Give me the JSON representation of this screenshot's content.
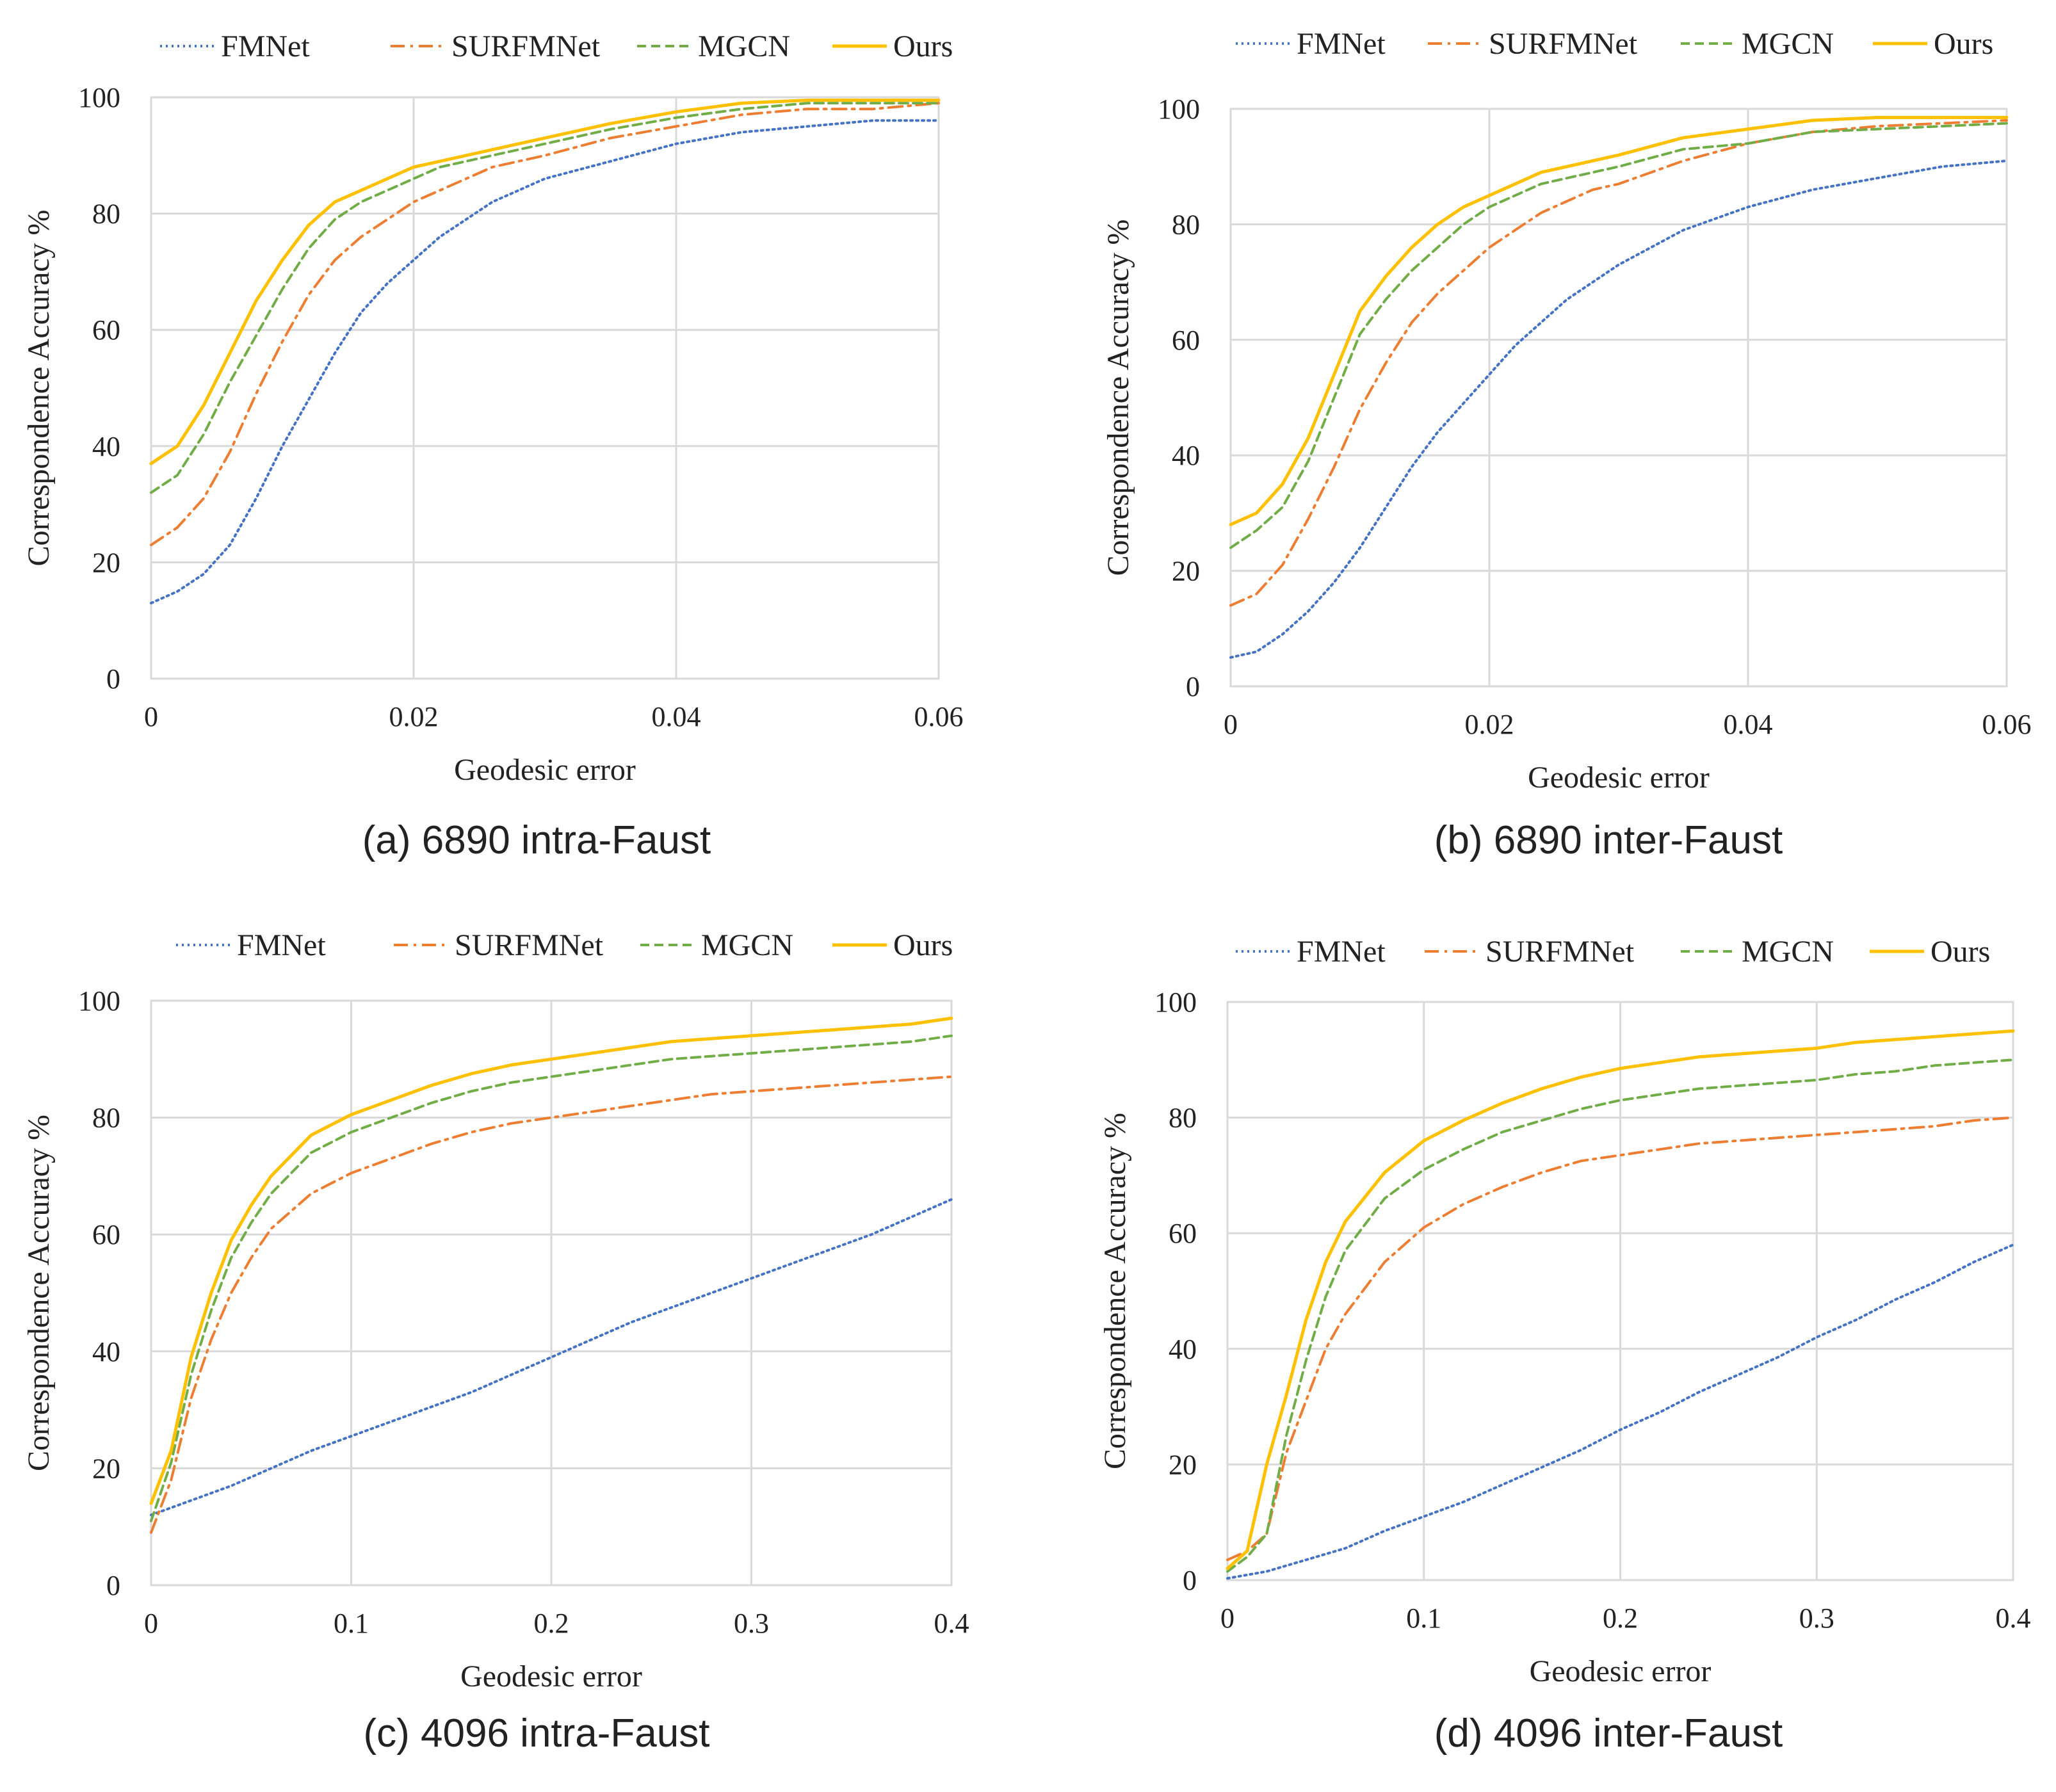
{
  "chart_data": [
    {
      "type": "line",
      "caption": "(a) 6890 intra-Faust",
      "xlabel": "Geodesic error",
      "ylabel": "Correspondence Accuracy %",
      "xlim": [
        0,
        0.06
      ],
      "ylim": [
        0,
        100
      ],
      "xticks": [
        0,
        0.02,
        0.04,
        0.06
      ],
      "xtick_labels": [
        "0",
        "0.02",
        "0.04",
        "0.06"
      ],
      "yticks": [
        0,
        20,
        40,
        60,
        80,
        100
      ],
      "ytick_labels": [
        "0",
        "20",
        "40",
        "60",
        "80",
        "100"
      ],
      "grid": "on",
      "legend_position": "top",
      "series": [
        {
          "name": "FMNet",
          "x": [
            0,
            0.002,
            0.004,
            0.006,
            0.008,
            0.01,
            0.012,
            0.014,
            0.016,
            0.018,
            0.02,
            0.022,
            0.024,
            0.026,
            0.028,
            0.03,
            0.035,
            0.04,
            0.045,
            0.05,
            0.055,
            0.06
          ],
          "y": [
            13,
            15,
            18,
            23,
            31,
            40,
            48,
            56,
            63,
            68,
            72,
            76,
            79,
            82,
            84,
            86,
            89,
            92,
            94,
            95,
            96,
            96
          ]
        },
        {
          "name": "SURFMNet",
          "x": [
            0,
            0.002,
            0.004,
            0.006,
            0.008,
            0.01,
            0.012,
            0.014,
            0.016,
            0.018,
            0.02,
            0.022,
            0.024,
            0.026,
            0.028,
            0.03,
            0.035,
            0.04,
            0.045,
            0.05,
            0.055,
            0.06
          ],
          "y": [
            23,
            26,
            31,
            39,
            49,
            58,
            66,
            72,
            76,
            79,
            82,
            84,
            86,
            88,
            89,
            90,
            93,
            95,
            97,
            98,
            98,
            99
          ]
        },
        {
          "name": "MGCN",
          "x": [
            0,
            0.002,
            0.004,
            0.006,
            0.008,
            0.01,
            0.012,
            0.014,
            0.016,
            0.018,
            0.02,
            0.022,
            0.024,
            0.026,
            0.028,
            0.03,
            0.035,
            0.04,
            0.045,
            0.05,
            0.055,
            0.06
          ],
          "y": [
            32,
            35,
            42,
            51,
            59,
            67,
            74,
            79,
            82,
            84,
            86,
            88,
            89,
            90,
            91,
            92,
            94.5,
            96.5,
            98,
            99,
            99,
            99
          ]
        },
        {
          "name": "Ours",
          "x": [
            0,
            0.002,
            0.004,
            0.006,
            0.008,
            0.01,
            0.012,
            0.014,
            0.016,
            0.018,
            0.02,
            0.022,
            0.024,
            0.026,
            0.028,
            0.03,
            0.035,
            0.04,
            0.045,
            0.05,
            0.055,
            0.06
          ],
          "y": [
            37,
            40,
            47,
            56,
            65,
            72,
            78,
            82,
            84,
            86,
            88,
            89,
            90,
            91,
            92,
            93,
            95.5,
            97.5,
            99,
            99.5,
            99.5,
            99.5
          ]
        }
      ]
    },
    {
      "type": "line",
      "caption": "(b) 6890 inter-Faust",
      "xlabel": "Geodesic error",
      "ylabel": "Correspondence Accuracy %",
      "xlim": [
        0,
        0.06
      ],
      "ylim": [
        0,
        100
      ],
      "xticks": [
        0,
        0.02,
        0.04,
        0.06
      ],
      "xtick_labels": [
        "0",
        "0.02",
        "0.04",
        "0.06"
      ],
      "yticks": [
        0,
        20,
        40,
        60,
        80,
        100
      ],
      "ytick_labels": [
        "0",
        "20",
        "40",
        "60",
        "80",
        "100"
      ],
      "grid": "on",
      "legend_position": "top",
      "series": [
        {
          "name": "FMNet",
          "x": [
            0,
            0.002,
            0.004,
            0.006,
            0.008,
            0.01,
            0.012,
            0.014,
            0.016,
            0.018,
            0.02,
            0.022,
            0.024,
            0.026,
            0.028,
            0.03,
            0.035,
            0.04,
            0.045,
            0.05,
            0.055,
            0.06
          ],
          "y": [
            5,
            6,
            9,
            13,
            18,
            24,
            31,
            38,
            44,
            49,
            54,
            59,
            63,
            67,
            70,
            73,
            79,
            83,
            86,
            88,
            90,
            91
          ]
        },
        {
          "name": "SURFMNet",
          "x": [
            0,
            0.002,
            0.004,
            0.006,
            0.008,
            0.01,
            0.012,
            0.014,
            0.016,
            0.018,
            0.02,
            0.022,
            0.024,
            0.026,
            0.028,
            0.03,
            0.035,
            0.04,
            0.045,
            0.05,
            0.055,
            0.06
          ],
          "y": [
            14,
            16,
            21,
            29,
            38,
            48,
            56,
            63,
            68,
            72,
            76,
            79,
            82,
            84,
            86,
            87,
            91,
            94,
            96,
            97,
            97.5,
            98
          ]
        },
        {
          "name": "MGCN",
          "x": [
            0,
            0.002,
            0.004,
            0.006,
            0.008,
            0.01,
            0.012,
            0.014,
            0.016,
            0.018,
            0.02,
            0.022,
            0.024,
            0.026,
            0.028,
            0.03,
            0.035,
            0.04,
            0.045,
            0.05,
            0.055,
            0.06
          ],
          "y": [
            24,
            27,
            31,
            39,
            50,
            61,
            67,
            72,
            76,
            80,
            83,
            85,
            87,
            88,
            89,
            90,
            93,
            94,
            96,
            96.5,
            97,
            97.5
          ]
        },
        {
          "name": "Ours",
          "x": [
            0,
            0.002,
            0.004,
            0.006,
            0.008,
            0.01,
            0.012,
            0.014,
            0.016,
            0.018,
            0.02,
            0.022,
            0.024,
            0.026,
            0.028,
            0.03,
            0.035,
            0.04,
            0.045,
            0.05,
            0.055,
            0.06
          ],
          "y": [
            28,
            30,
            35,
            43,
            54,
            65,
            71,
            76,
            80,
            83,
            85,
            87,
            89,
            90,
            91,
            92,
            95,
            96.5,
            98,
            98.5,
            98.5,
            98.5
          ]
        }
      ]
    },
    {
      "type": "line",
      "caption": "(c) 4096 intra-Faust",
      "xlabel": "Geodesic error",
      "ylabel": "Correspondence Accuracy %",
      "xlim": [
        0,
        0.4
      ],
      "ylim": [
        0,
        100
      ],
      "xticks": [
        0,
        0.1,
        0.2,
        0.3,
        0.4
      ],
      "xtick_labels": [
        "0",
        "0.1",
        "0.2",
        "0.3",
        "0.4"
      ],
      "yticks": [
        0,
        20,
        40,
        60,
        80,
        100
      ],
      "ytick_labels": [
        "0",
        "20",
        "40",
        "60",
        "80",
        "100"
      ],
      "grid": "on",
      "legend_position": "top",
      "series": [
        {
          "name": "FMNet",
          "x": [
            0,
            0.02,
            0.04,
            0.06,
            0.08,
            0.1,
            0.12,
            0.14,
            0.16,
            0.18,
            0.2,
            0.22,
            0.24,
            0.26,
            0.28,
            0.3,
            0.32,
            0.34,
            0.36,
            0.38,
            0.4
          ],
          "y": [
            12,
            14.5,
            17,
            20,
            23,
            25.5,
            28,
            30.5,
            33,
            36,
            39,
            42,
            45,
            47.5,
            50,
            52.5,
            55,
            57.5,
            60,
            63,
            66
          ]
        },
        {
          "name": "SURFMNet",
          "x": [
            0,
            0.01,
            0.02,
            0.03,
            0.04,
            0.05,
            0.06,
            0.08,
            0.1,
            0.12,
            0.14,
            0.16,
            0.18,
            0.2,
            0.22,
            0.24,
            0.26,
            0.28,
            0.3,
            0.32,
            0.34,
            0.36,
            0.38,
            0.4
          ],
          "y": [
            9,
            18,
            32,
            42,
            50,
            56,
            61,
            67,
            70.5,
            73,
            75.5,
            77.5,
            79,
            80,
            81,
            82,
            83,
            84,
            84.5,
            85,
            85.5,
            86,
            86.5,
            87
          ]
        },
        {
          "name": "MGCN",
          "x": [
            0,
            0.01,
            0.02,
            0.03,
            0.04,
            0.05,
            0.06,
            0.08,
            0.1,
            0.12,
            0.14,
            0.16,
            0.18,
            0.2,
            0.22,
            0.24,
            0.26,
            0.28,
            0.3,
            0.32,
            0.34,
            0.36,
            0.38,
            0.4
          ],
          "y": [
            11,
            21,
            36,
            47,
            56,
            62,
            67,
            74,
            77.5,
            80,
            82.5,
            84.5,
            86,
            87,
            88,
            89,
            90,
            90.5,
            91,
            91.5,
            92,
            92.5,
            93,
            94
          ]
        },
        {
          "name": "Ours",
          "x": [
            0,
            0.01,
            0.02,
            0.03,
            0.04,
            0.05,
            0.06,
            0.08,
            0.1,
            0.12,
            0.14,
            0.16,
            0.18,
            0.2,
            0.22,
            0.24,
            0.26,
            0.28,
            0.3,
            0.32,
            0.34,
            0.36,
            0.38,
            0.4
          ],
          "y": [
            14,
            23,
            39,
            50,
            59,
            65,
            70,
            77,
            80.5,
            83,
            85.5,
            87.5,
            89,
            90,
            91,
            92,
            93,
            93.5,
            94,
            94.5,
            95,
            95.5,
            96,
            97
          ]
        }
      ]
    },
    {
      "type": "line",
      "caption": "(d) 4096 inter-Faust",
      "xlabel": "Geodesic error",
      "ylabel": "Correspondence Accuracy %",
      "xlim": [
        0,
        0.4
      ],
      "ylim": [
        0,
        100
      ],
      "xticks": [
        0,
        0.1,
        0.2,
        0.3,
        0.4
      ],
      "xtick_labels": [
        "0",
        "0.1",
        "0.2",
        "0.3",
        "0.4"
      ],
      "yticks": [
        0,
        20,
        40,
        60,
        80,
        100
      ],
      "ytick_labels": [
        "0",
        "20",
        "40",
        "60",
        "80",
        "100"
      ],
      "grid": "on",
      "legend_position": "top",
      "series": [
        {
          "name": "FMNet",
          "x": [
            0,
            0.02,
            0.04,
            0.06,
            0.08,
            0.1,
            0.12,
            0.14,
            0.16,
            0.18,
            0.2,
            0.22,
            0.24,
            0.26,
            0.28,
            0.3,
            0.32,
            0.34,
            0.36,
            0.38,
            0.4
          ],
          "y": [
            0.3,
            1.5,
            3.5,
            5.5,
            8.5,
            11,
            13.5,
            16.5,
            19.5,
            22.5,
            26,
            29,
            32.5,
            35.5,
            38.5,
            42,
            45,
            48.5,
            51.5,
            55,
            58
          ]
        },
        {
          "name": "SURFMNet",
          "x": [
            0,
            0.01,
            0.02,
            0.03,
            0.04,
            0.05,
            0.06,
            0.08,
            0.1,
            0.12,
            0.14,
            0.16,
            0.18,
            0.2,
            0.22,
            0.24,
            0.26,
            0.28,
            0.3,
            0.32,
            0.34,
            0.36,
            0.38,
            0.4
          ],
          "y": [
            3.5,
            5,
            8,
            22,
            31,
            40,
            46,
            55,
            61,
            65,
            68,
            70.5,
            72.5,
            73.5,
            74.5,
            75.5,
            76,
            76.5,
            77,
            77.5,
            78,
            78.5,
            79.5,
            80
          ]
        },
        {
          "name": "MGCN",
          "x": [
            0,
            0.01,
            0.02,
            0.03,
            0.04,
            0.05,
            0.06,
            0.08,
            0.1,
            0.12,
            0.14,
            0.16,
            0.18,
            0.2,
            0.22,
            0.24,
            0.26,
            0.28,
            0.3,
            0.32,
            0.34,
            0.36,
            0.38,
            0.4
          ],
          "y": [
            1.5,
            4,
            8,
            25,
            38,
            49,
            57,
            66,
            71,
            74.5,
            77.5,
            79.5,
            81.5,
            83,
            84,
            85,
            85.5,
            86,
            86.5,
            87.5,
            88,
            89,
            89.5,
            90
          ]
        },
        {
          "name": "Ours",
          "x": [
            0,
            0.01,
            0.02,
            0.03,
            0.04,
            0.05,
            0.06,
            0.08,
            0.1,
            0.12,
            0.14,
            0.16,
            0.18,
            0.2,
            0.22,
            0.24,
            0.26,
            0.28,
            0.3,
            0.32,
            0.34,
            0.36,
            0.38,
            0.4
          ],
          "y": [
            2,
            5,
            20,
            32,
            45,
            55,
            62,
            70.5,
            76,
            79.5,
            82.5,
            85,
            87,
            88.5,
            89.5,
            90.5,
            91,
            91.5,
            92,
            93,
            93.5,
            94,
            94.5,
            95
          ]
        }
      ]
    }
  ],
  "legend": {
    "FMNet": "FMNet",
    "SURFMNet": "SURFMNet",
    "MGCN": "MGCN",
    "Ours": "Ours"
  },
  "colors": {
    "FMNet": "#4472c4",
    "SURFMNet": "#ed7d31",
    "MGCN": "#70ad47",
    "Ours": "#ffc000"
  },
  "dashes": {
    "FMNet": "3 6",
    "SURFMNet": "22 9 4 9",
    "MGCN": "14 8",
    "Ours": ""
  }
}
